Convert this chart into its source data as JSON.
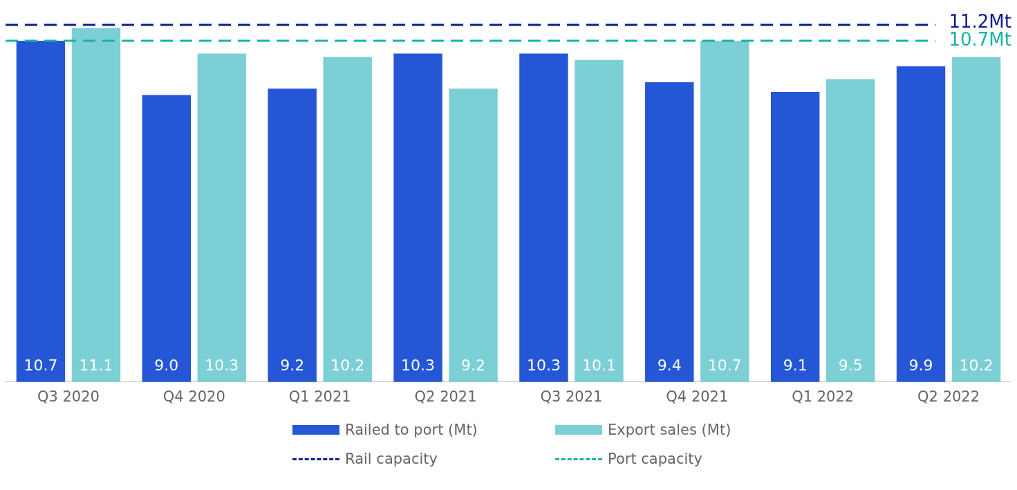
{
  "chart_data": {
    "type": "bar",
    "categories": [
      "Q3 2020",
      "Q4 2020",
      "Q1 2021",
      "Q2 2021",
      "Q3 2021",
      "Q4 2021",
      "Q1 2022",
      "Q2 2022"
    ],
    "series": [
      {
        "name": "Railed to port (Mt)",
        "color": "#2456d6",
        "values": [
          10.7,
          9.0,
          9.2,
          10.3,
          10.3,
          9.4,
          9.1,
          9.9
        ],
        "value_labels": [
          "10.7",
          "9.0",
          "9.2",
          "10.3",
          "10.3",
          "9.4",
          "9.1",
          "9.9"
        ]
      },
      {
        "name": "Export sales (Mt)",
        "color": "#7ccfd4",
        "values": [
          11.1,
          10.3,
          10.2,
          9.2,
          10.1,
          10.7,
          9.5,
          10.2
        ],
        "value_labels": [
          "11.1",
          "10.3",
          "10.2",
          "9.2",
          "10.1",
          "10.7",
          "9.5",
          "10.2"
        ]
      }
    ],
    "ref_lines": [
      {
        "axis": "y",
        "value": 11.2,
        "label": "Rail capacity",
        "color": "#0b1f8f",
        "line_style": "dashed"
      },
      {
        "axis": "y",
        "value": 10.7,
        "label": "Port capacity",
        "color": "#17b3a3",
        "line_style": "dashed"
      }
    ],
    "annotations": [
      "11.2Mt",
      "10.7Mt"
    ],
    "tick_labels": "x",
    "grid": false,
    "legend": "bottom"
  }
}
